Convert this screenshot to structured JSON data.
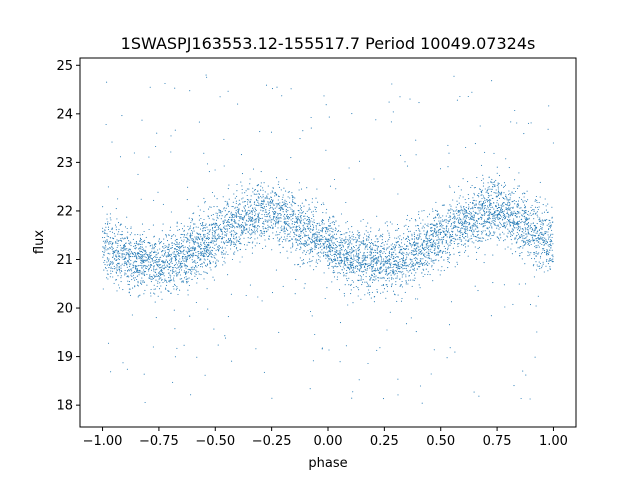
{
  "chart_data": {
    "type": "scatter",
    "title": "1SWASPJ163553.12-155517.7 Period 10049.07324s",
    "xlabel": "phase",
    "ylabel": "flux",
    "xlim": [
      -1.1,
      1.1
    ],
    "ylim": [
      17.55,
      25.15
    ],
    "xticks": [
      -1.0,
      -0.75,
      -0.5,
      -0.25,
      0.0,
      0.25,
      0.5,
      0.75,
      1.0
    ],
    "xtick_labels": [
      "−1.00",
      "−0.75",
      "−0.50",
      "−0.25",
      "0.00",
      "0.25",
      "0.50",
      "0.75",
      "1.00"
    ],
    "yticks": [
      18,
      19,
      20,
      21,
      22,
      23,
      24,
      25
    ],
    "ytick_labels": [
      "18",
      "19",
      "20",
      "21",
      "22",
      "23",
      "24",
      "25"
    ],
    "grid": false,
    "legend": "none",
    "series": [
      {
        "color": "#1f77b4",
        "model": "folded light curve, symmetric about phase 0",
        "x": [
          -1.0,
          -0.9,
          -0.8,
          -0.75,
          -0.7,
          -0.6,
          -0.5,
          -0.4,
          -0.3,
          -0.25,
          -0.2,
          -0.1,
          0.0,
          0.1,
          0.2,
          0.25,
          0.3,
          0.4,
          0.5,
          0.6,
          0.7,
          0.75,
          0.8,
          0.9,
          1.0
        ],
        "y": [
          21.3,
          21.05,
          20.95,
          20.9,
          20.95,
          21.15,
          21.45,
          21.75,
          21.95,
          22.0,
          21.9,
          21.6,
          21.3,
          21.05,
          20.95,
          20.9,
          20.95,
          21.15,
          21.45,
          21.75,
          21.95,
          22.0,
          21.9,
          21.6,
          21.3
        ],
        "point_count": 6000,
        "scatter_sd": 0.32,
        "outlier_fraction": 0.05,
        "outlier_range": [
          18.0,
          24.8
        ]
      }
    ]
  }
}
